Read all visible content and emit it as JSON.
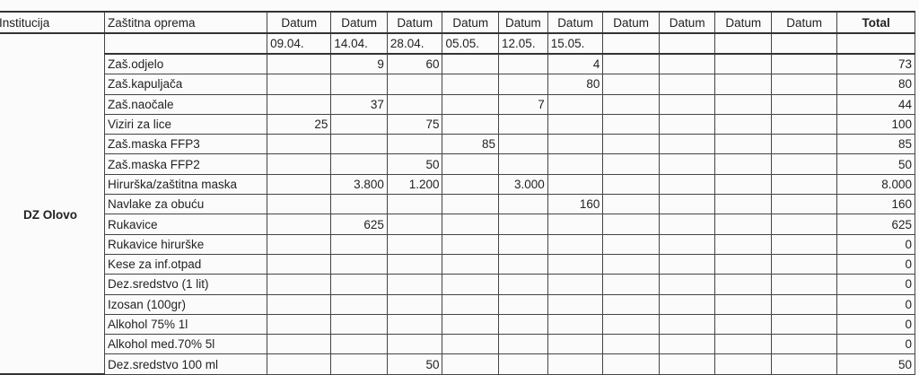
{
  "header": {
    "institution": "Institucija",
    "equipment": "Zaštitna oprema",
    "date_label": "Datum",
    "total": "Total"
  },
  "dates": [
    "09.04.",
    "14.04.",
    "28.04.",
    "05.05.",
    "12.05.",
    "15.05.",
    "",
    "",
    "",
    ""
  ],
  "institution_name": "DZ Olovo",
  "rows": [
    {
      "item": "Zaš.odjelo",
      "values": [
        "",
        "9",
        "60",
        "",
        "",
        "4",
        "",
        "",
        "",
        ""
      ],
      "total": "73"
    },
    {
      "item": "Zaš.kapuljača",
      "values": [
        "",
        "",
        "",
        "",
        "",
        "80",
        "",
        "",
        "",
        ""
      ],
      "total": "80"
    },
    {
      "item": "Zaš.naočale",
      "values": [
        "",
        "37",
        "",
        "",
        "7",
        "",
        "",
        "",
        "",
        ""
      ],
      "total": "44"
    },
    {
      "item": "Viziri za lice",
      "values": [
        "25",
        "",
        "75",
        "",
        "",
        "",
        "",
        "",
        "",
        ""
      ],
      "total": "100"
    },
    {
      "item": "Zaš.maska FFP3",
      "values": [
        "",
        "",
        "",
        "85",
        "",
        "",
        "",
        "",
        "",
        ""
      ],
      "total": "85"
    },
    {
      "item": "Zaš.maska FFP2",
      "values": [
        "",
        "",
        "50",
        "",
        "",
        "",
        "",
        "",
        "",
        ""
      ],
      "total": "50"
    },
    {
      "item": "Hirurška/zaštitna maska",
      "values": [
        "",
        "3.800",
        "1.200",
        "",
        "3.000",
        "",
        "",
        "",
        "",
        ""
      ],
      "total": "8.000"
    },
    {
      "item": "Navlake za obuću",
      "values": [
        "",
        "",
        "",
        "",
        "",
        "160",
        "",
        "",
        "",
        ""
      ],
      "total": "160"
    },
    {
      "item": "Rukavice",
      "values": [
        "",
        "625",
        "",
        "",
        "",
        "",
        "",
        "",
        "",
        ""
      ],
      "total": "625"
    },
    {
      "item": "Rukavice hirurške",
      "values": [
        "",
        "",
        "",
        "",
        "",
        "",
        "",
        "",
        "",
        ""
      ],
      "total": "0"
    },
    {
      "item": "Kese za inf.otpad",
      "values": [
        "",
        "",
        "",
        "",
        "",
        "",
        "",
        "",
        "",
        ""
      ],
      "total": "0"
    },
    {
      "item": "Dez.sredstvo (1 lit)",
      "values": [
        "",
        "",
        "",
        "",
        "",
        "",
        "",
        "",
        "",
        ""
      ],
      "total": "0"
    },
    {
      "item": "Izosan (100gr)",
      "values": [
        "",
        "",
        "",
        "",
        "",
        "",
        "",
        "",
        "",
        ""
      ],
      "total": "0"
    },
    {
      "item": "Alkohol 75% 1l",
      "values": [
        "",
        "",
        "",
        "",
        "",
        "",
        "",
        "",
        "",
        ""
      ],
      "total": "0"
    },
    {
      "item": "Alkohol med.70%  5l",
      "values": [
        "",
        "",
        "",
        "",
        "",
        "",
        "",
        "",
        "",
        ""
      ],
      "total": "0"
    },
    {
      "item": "Dez.sredstvo 100 ml",
      "values": [
        "",
        "",
        "50",
        "",
        "",
        "",
        "",
        "",
        "",
        ""
      ],
      "total": "50"
    }
  ]
}
